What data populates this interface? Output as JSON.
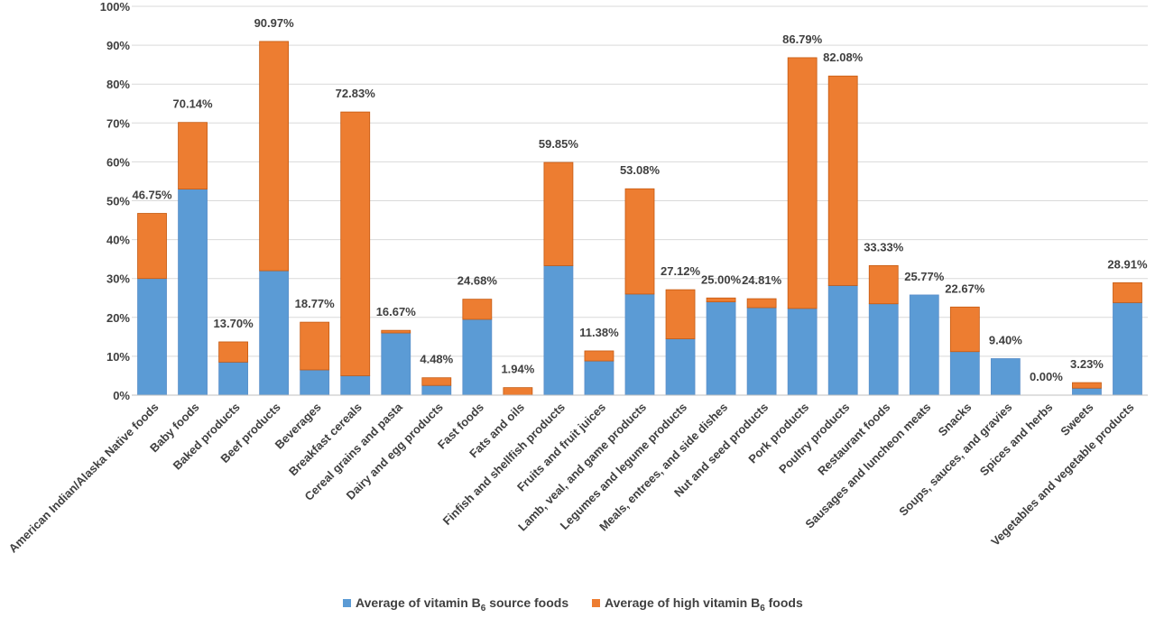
{
  "chart_data": {
    "type": "bar",
    "stacked": true,
    "categories": [
      "American Indian/Alaska Native foods",
      "Baby foods",
      "Baked products",
      "Beef products",
      "Beverages",
      "Breakfast cereals",
      "Cereal grains and pasta",
      "Dairy and egg products",
      "Fast foods",
      "Fats and oils",
      "Finfish and shellfish products",
      "Fruits and fruit juices",
      "Lamb, veal, and game products",
      "Legumes and legume products",
      "Meals, entrees, and side dishes",
      "Nut and seed products",
      "Pork products",
      "Poultry products",
      "Restaurant foods",
      "Sausages and luncheon meats",
      "Snacks",
      "Soups, sauces, and gravies",
      "Spices and herbs",
      "Sweets",
      "Vegetables and vegetable products"
    ],
    "series": [
      {
        "name_main": "Average of vitamin B",
        "name_sub": "6",
        "name_tail": " source foods",
        "color": "#5b9bd5",
        "values": [
          30.0,
          53.0,
          8.5,
          32.0,
          6.5,
          5.0,
          16.0,
          2.5,
          19.5,
          0.0,
          33.3,
          8.8,
          26.0,
          14.5,
          24.0,
          22.5,
          22.3,
          28.2,
          23.5,
          25.77,
          11.2,
          9.4,
          0.0,
          1.8,
          23.8
        ]
      },
      {
        "name_main": "Average of high vitamin B",
        "name_sub": "6",
        "name_tail": " foods",
        "color": "#ed7d31",
        "values": [
          16.75,
          17.14,
          5.2,
          58.97,
          12.27,
          67.83,
          0.67,
          1.98,
          5.18,
          1.94,
          26.55,
          2.58,
          27.08,
          12.62,
          1.0,
          2.31,
          64.49,
          53.88,
          9.83,
          0.0,
          11.47,
          0.0,
          0.0,
          1.43,
          5.11
        ]
      }
    ],
    "data_labels": [
      "46.75%",
      "70.14%",
      "13.70%",
      "90.97%",
      "18.77%",
      "72.83%",
      "16.67%",
      "4.48%",
      "24.68%",
      "1.94%",
      "59.85%",
      "11.38%",
      "53.08%",
      "27.12%",
      "25.00%",
      "24.81%",
      "86.79%",
      "82.08%",
      "33.33%",
      "25.77%",
      "22.67%",
      "9.40%",
      "0.00%",
      "3.23%",
      "28.91%"
    ],
    "totals": [
      46.75,
      70.14,
      13.7,
      90.97,
      18.77,
      72.83,
      16.67,
      4.48,
      24.68,
      1.94,
      59.85,
      11.38,
      53.08,
      27.12,
      25.0,
      24.81,
      86.79,
      82.08,
      33.33,
      25.77,
      22.67,
      9.4,
      0.0,
      3.23,
      28.91
    ],
    "y_ticks": [
      "0%",
      "10%",
      "20%",
      "30%",
      "40%",
      "50%",
      "60%",
      "70%",
      "80%",
      "90%",
      "100%"
    ],
    "ylim": [
      0,
      100
    ],
    "grid": true,
    "legend_position": "bottom",
    "title": "",
    "xlabel": "",
    "ylabel": ""
  }
}
